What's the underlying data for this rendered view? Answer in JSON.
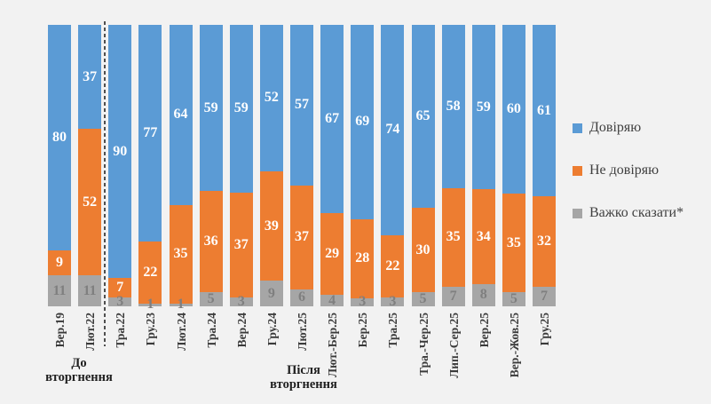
{
  "chart_data": {
    "type": "bar",
    "stacked": true,
    "unit": "%",
    "ylim": [
      0,
      100
    ],
    "grid": false,
    "legend_position": "right",
    "background_color": "#F2F2F2",
    "categories": [
      "Вер.19",
      "Лют.22",
      "Тра.22",
      "Гру.23",
      "Лют.24",
      "Тра.24",
      "Вер.24",
      "Гру.24",
      "Лют.25",
      "Лют.-Бер.25",
      "Бер.25",
      "Тра.25",
      "Тра.-Чер.25",
      "Лип.-Сер.25",
      "Вер.25",
      "Вер.-Жов.25",
      "Гру.25"
    ],
    "series": [
      {
        "name": "Довіряю",
        "color": "#5B9BD5",
        "label_color": "#FFFFFF",
        "values": [
          80,
          37,
          90,
          77,
          64,
          59,
          59,
          52,
          57,
          67,
          69,
          74,
          65,
          58,
          59,
          60,
          61
        ]
      },
      {
        "name": "Не довіряю",
        "color": "#ED7D31",
        "label_color": "#FFFFFF",
        "values": [
          9,
          52,
          7,
          22,
          35,
          36,
          37,
          39,
          37,
          29,
          28,
          22,
          30,
          35,
          34,
          35,
          32
        ]
      },
      {
        "name": "Важко сказати*",
        "color": "#A6A6A6",
        "label_color": "#7F7F7F",
        "values": [
          11,
          11,
          3,
          1,
          1,
          5,
          3,
          9,
          6,
          4,
          3,
          3,
          5,
          7,
          8,
          5,
          7
        ]
      }
    ],
    "annotations": {
      "before_invasion": "До\nвторгнення",
      "after_invasion": "Після\nвторгнення",
      "divider_between": [
        "Лют.22",
        "Тра.22"
      ]
    }
  }
}
